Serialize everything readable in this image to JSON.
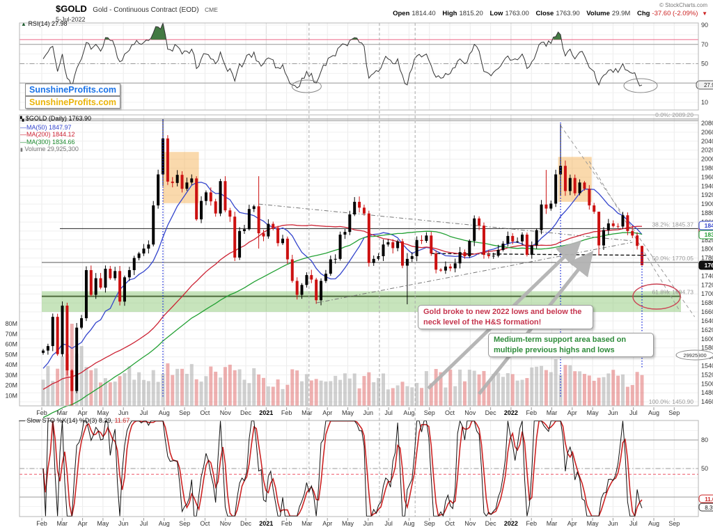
{
  "header": {
    "title": "$GOLD",
    "subtitle": "Gold - Continuous Contract (EOD)",
    "exchange": "CME",
    "date": "5-Jul-2022",
    "source": "© StockCharts.com",
    "quote": {
      "open_label": "Open",
      "open": "1814.40",
      "high_label": "High",
      "high": "1815.20",
      "low_label": "Low",
      "low": "1763.00",
      "close_label": "Close",
      "close": "1763.90",
      "volume_label": "Volume",
      "volume": "29.9M",
      "chg_label": "Chg",
      "chg": "-37.60 (-2.09%)",
      "chg_dir": "▼"
    }
  },
  "watermarks": {
    "line1": "SunshineProfits.com",
    "line2": "SunshineProfits.com"
  },
  "annotations": {
    "hns": "Gold broke to new 2022 lows and below the neck level of the H&S formation!",
    "support": "Medium-term support area based on multiple previous highs and lows"
  },
  "axis": {
    "months": [
      "Feb",
      "Mar",
      "Apr",
      "May",
      "Jun",
      "Jul",
      "Aug",
      "Sep",
      "Oct",
      "Nov",
      "Dec",
      "2021",
      "Feb",
      "Mar",
      "Apr",
      "May",
      "Jun",
      "Jul",
      "Aug",
      "Sep",
      "Oct",
      "Nov",
      "Dec",
      "2022",
      "Feb",
      "Mar",
      "Apr",
      "May",
      "Jun",
      "Jul",
      "Aug",
      "Sep"
    ]
  },
  "chart_data": [
    {
      "panel": "rsi",
      "type": "line",
      "label": "RSI(14)",
      "last": "27.98",
      "last_value": 27.98,
      "ylim": [
        0,
        100
      ],
      "yticks": [
        10,
        30,
        50,
        70,
        90
      ],
      "overbought_line": 75,
      "upper_line": 70,
      "mid_line": 50,
      "lower_line": 30,
      "values": [
        55,
        62,
        68,
        42,
        60,
        35,
        25,
        45,
        55,
        72,
        65,
        70,
        63,
        77,
        74,
        67,
        52,
        60,
        64,
        70,
        71,
        72,
        74,
        82,
        88,
        92,
        65,
        63,
        68,
        60,
        63,
        65,
        45,
        55,
        60,
        55,
        50,
        62,
        48,
        45,
        32,
        50,
        52,
        60,
        62,
        52,
        50,
        56,
        54,
        46,
        49,
        36,
        28,
        25,
        35,
        42,
        40,
        30,
        42,
        48,
        57,
        58,
        68,
        70,
        74,
        77,
        72,
        68,
        35,
        40,
        42,
        52,
        55,
        50,
        55,
        38,
        28,
        45,
        58,
        57,
        60,
        48,
        36,
        35,
        40,
        40,
        46,
        55,
        50,
        60,
        70,
        63,
        42,
        40,
        41,
        45,
        52,
        58,
        54,
        54,
        60,
        45,
        52,
        62,
        72,
        68,
        71,
        78,
        80,
        58,
        65,
        55,
        62,
        58,
        46,
        42,
        28,
        38,
        43,
        41,
        41,
        50,
        43,
        40,
        33,
        27.98
      ]
    },
    {
      "panel": "price",
      "type": "candlestick",
      "label": "$GOLD (Daily)",
      "last": "1763.90",
      "last_value": 1763.9,
      "ylim": [
        1440,
        2100
      ],
      "ytick_min": 1460,
      "ytick_max": 2080,
      "ytick_step": 20,
      "weekly_closes": [
        1574,
        1584,
        1649,
        1566,
        1674,
        1530,
        1484,
        1625,
        1646,
        1753,
        1698,
        1735,
        1714,
        1756,
        1735,
        1751,
        1683,
        1737,
        1753,
        1780,
        1790,
        1801,
        1810,
        1897,
        1966,
        2046,
        1950,
        1947,
        1965,
        1934,
        1948,
        1957,
        1866,
        1907,
        1926,
        1906,
        1879,
        1951,
        1886,
        1872,
        1781,
        1840,
        1844,
        1889,
        1895,
        1835,
        1828,
        1856,
        1847,
        1813,
        1823,
        1777,
        1729,
        1698,
        1720,
        1742,
        1732,
        1686,
        1729,
        1745,
        1777,
        1778,
        1832,
        1838,
        1877,
        1905,
        1892,
        1879,
        1769,
        1778,
        1784,
        1810,
        1815,
        1802,
        1817,
        1763,
        1778,
        1784,
        1820,
        1818,
        1830,
        1790,
        1754,
        1752,
        1761,
        1757,
        1768,
        1793,
        1784,
        1818,
        1868,
        1852,
        1787,
        1784,
        1785,
        1798,
        1812,
        1829,
        1817,
        1817,
        1832,
        1787,
        1808,
        1842,
        1899,
        1890,
        1901,
        1966,
        1985,
        1929,
        1958,
        1924,
        1948,
        1934,
        1897,
        1883,
        1808,
        1842,
        1857,
        1851,
        1850,
        1875,
        1840,
        1830,
        1807,
        1764
      ],
      "wick_overrides": {
        "6": [
          1533,
          1451
        ],
        "25": [
          2089,
          1940
        ],
        "45": [
          1962,
          1801
        ],
        "57": [
          1736,
          1678
        ],
        "76": [
          1791,
          1677
        ],
        "105": [
          1976,
          1878
        ],
        "108": [
          2078,
          1918
        ],
        "116": [
          1848,
          1786
        ],
        "125": [
          1789,
          1763
        ]
      },
      "ma_seed_history": [
        1282,
        1286,
        1290,
        1295,
        1300,
        1298,
        1294,
        1290,
        1287,
        1292,
        1298,
        1305,
        1310,
        1312,
        1308,
        1302,
        1298,
        1295,
        1300,
        1312,
        1325,
        1340,
        1380,
        1400,
        1413,
        1420,
        1428,
        1440,
        1446,
        1440,
        1437,
        1446,
        1500,
        1510,
        1512,
        1508,
        1498,
        1512,
        1520,
        1525,
        1517,
        1512,
        1506,
        1499,
        1495,
        1489,
        1503,
        1506,
        1512,
        1478,
        1472,
        1465,
        1471,
        1479,
        1514,
        1552,
        1560,
        1557,
        1582,
        1589
      ],
      "mas": [
        {
          "label": "MA(50)",
          "value": "1847.97",
          "window": 10,
          "color": "#3344cc"
        },
        {
          "label": "MA(200)",
          "value": "1844.12",
          "window": 40,
          "color": "#cc2233"
        },
        {
          "label": "MA(300)",
          "value": "1834.66",
          "window": 60,
          "color": "#22a033"
        }
      ],
      "volume_legend": "Volume 29,925,300",
      "volume_flag": "29925300",
      "volume_yticks": [
        "10M",
        "20M",
        "30M",
        "40M",
        "50M",
        "60M",
        "70M",
        "80M"
      ],
      "fib": [
        {
          "label": "0.0%",
          "value": 2089.2,
          "text": "0.0%: 2089.20"
        },
        {
          "label": "38.2%",
          "value": 1845.37,
          "text": "38.2%: 1845.37"
        },
        {
          "label": "50.0%",
          "value": 1770.05,
          "text": "50.0%: 1770.05"
        },
        {
          "label": "61.8%",
          "value": 1694.73,
          "text": "61.8%: 1694.73"
        },
        {
          "label": "100.0%",
          "value": 1450.9,
          "text": "100.0%: 1450.90"
        }
      ],
      "price_flags": [
        {
          "text": "1847.97",
          "value": 1847.97,
          "color": "#3344cc"
        },
        {
          "text": "1844.12",
          "value": 1844.12,
          "color": "#cc2233"
        },
        {
          "text": "1834.66",
          "value": 1834.66,
          "color": "#22a033"
        },
        {
          "text": "1763.90",
          "value": 1763.9,
          "color": "#000000"
        }
      ],
      "support_zone": {
        "top": 1706,
        "bottom": 1660
      },
      "highlight_boxes": [
        {
          "from": 25.0,
          "to": 32.5,
          "top": 2016,
          "bottom": 1902
        },
        {
          "from": 107.5,
          "to": 114.5,
          "top": 2005,
          "bottom": 1905
        }
      ],
      "event_lines": {
        "blue_dotted_idx": [
          25,
          108,
          125
        ],
        "gray_dashed_months": [
          13.1,
          16.55,
          18.3
        ]
      },
      "trendlines": [
        {
          "name": "neckline",
          "style": "black-dash",
          "p1": [
            81,
            1790
          ],
          "p2": [
            126,
            1786
          ]
        },
        {
          "name": "triangle-upper",
          "style": "gray-dashdot",
          "p1": [
            45,
            1900
          ],
          "p2": [
            123,
            1818
          ]
        },
        {
          "name": "triangle-lower",
          "style": "gray-dashdot",
          "p1": [
            57,
            1680
          ],
          "p2": [
            123,
            1815
          ]
        },
        {
          "name": "channel-upper",
          "style": "gray-dash",
          "p1": [
            108,
            2075
          ],
          "p2": [
            136,
            1649
          ]
        },
        {
          "name": "channel-lower",
          "style": "gray-dash",
          "p1": [
            114,
            1995
          ],
          "p2": [
            133,
            1660
          ]
        }
      ]
    },
    {
      "panel": "stochastic",
      "type": "line",
      "label": "Slow STO %K(14) %D(3)",
      "k_last": "8.39,",
      "d_last": "11.67",
      "k_last_value": 8.39,
      "d_last_value": 11.67,
      "ylim": [
        0,
        100
      ],
      "yticks": [
        20,
        50,
        80
      ],
      "mid_line": 50,
      "signal_dashed": 44,
      "upper_line": 80,
      "lower_line": 20,
      "k_window": 12,
      "d_window": 3
    }
  ]
}
